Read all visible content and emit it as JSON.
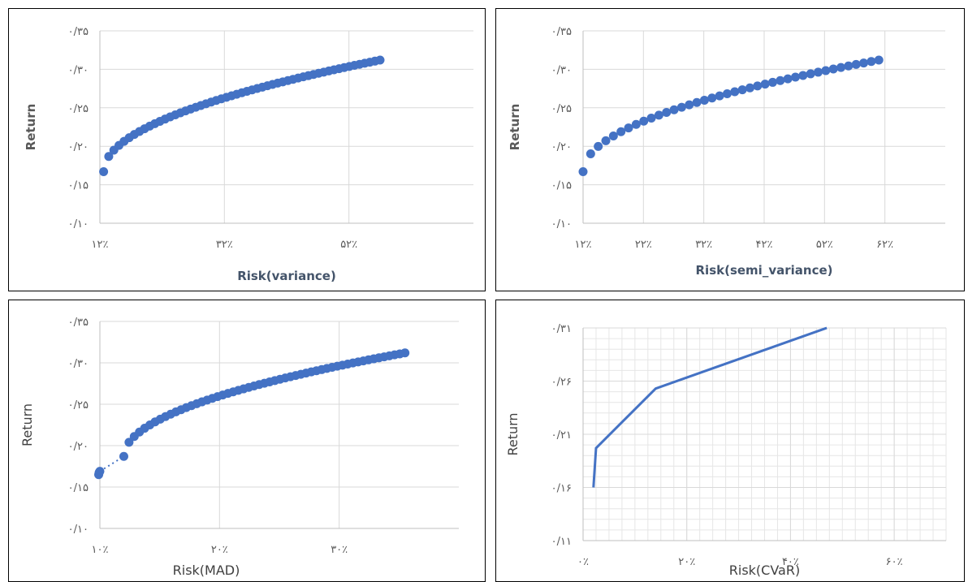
{
  "colors": {
    "series": "#4472c4",
    "grid": "#d9d9d9",
    "grid_minor": "#e6e6e6"
  },
  "chart_data": [
    {
      "type": "scatter",
      "xlabel": "Risk(variance)",
      "ylabel": "Return",
      "xticks": [
        "۱۲٪",
        "۳۲٪",
        "۵۲٪"
      ],
      "yticks": [
        "۰/۱۰",
        "۰/۱۵",
        "۰/۲۰",
        "۰/۲۵",
        "۰/۳۰",
        "۰/۳۵"
      ],
      "xlim": [
        0.12,
        0.72
      ],
      "ylim": [
        0.1,
        0.35
      ],
      "grid": true,
      "series": [
        {
          "x_start": 0.126,
          "x_end": 0.57,
          "y_start": 0.167,
          "y_end": 0.312,
          "points": 55
        }
      ]
    },
    {
      "type": "scatter",
      "xlabel": "Risk(semi_variance)",
      "ylabel": "Return",
      "xticks": [
        "۱۲٪",
        "۲۲٪",
        "۳۲٪",
        "۴۲٪",
        "۵۲٪",
        "۶۲٪"
      ],
      "yticks": [
        "۰/۱۰",
        "۰/۱۵",
        "۰/۲۰",
        "۰/۲۵",
        "۰/۳۰",
        "۰/۳۵"
      ],
      "xlim": [
        0.12,
        0.72
      ],
      "ylim": [
        0.1,
        0.35
      ],
      "grid": true,
      "series": [
        {
          "x_start": 0.12,
          "x_end": 0.61,
          "y_start": 0.167,
          "y_end": 0.312,
          "points": 40
        }
      ]
    },
    {
      "type": "scatter",
      "xlabel": "Risk(MAD)",
      "ylabel": "Return",
      "xticks": [
        "۱۰٪",
        "۲۰٪",
        "۳۰٪"
      ],
      "yticks": [
        "۰/۱۰",
        "۰/۱۵",
        "۰/۲۰",
        "۰/۲۵",
        "۰/۳۰",
        "۰/۳۵"
      ],
      "xlim": [
        0.1,
        0.4
      ],
      "ylim": [
        0.1,
        0.35
      ],
      "grid": true,
      "series": [
        {
          "x_start": 0.099,
          "x_end": 0.1,
          "y_start": 0.165,
          "y_end": 0.169,
          "points": 4
        },
        {
          "x_start": 0.12,
          "x_end": 0.355,
          "y_start": 0.187,
          "y_end": 0.312,
          "points": 55
        }
      ]
    },
    {
      "type": "line",
      "xlabel": "Risk(CVaR)",
      "ylabel": "Return",
      "xticks": [
        "۰٪",
        "۲۰٪",
        "۴۰٪",
        "۶۰٪"
      ],
      "yticks": [
        "۰/۱۱",
        "۰/۱۶",
        "۰/۲۱",
        "۰/۲۶",
        "۰/۳۱"
      ],
      "xlim": [
        0.0,
        0.7
      ],
      "ylim": [
        0.11,
        0.31
      ],
      "grid": true,
      "minor_grid": true,
      "series": [
        {
          "x": [
            0.02,
            0.025,
            0.14,
            0.47
          ],
          "y": [
            0.16,
            0.197,
            0.253,
            0.31
          ]
        }
      ]
    }
  ]
}
